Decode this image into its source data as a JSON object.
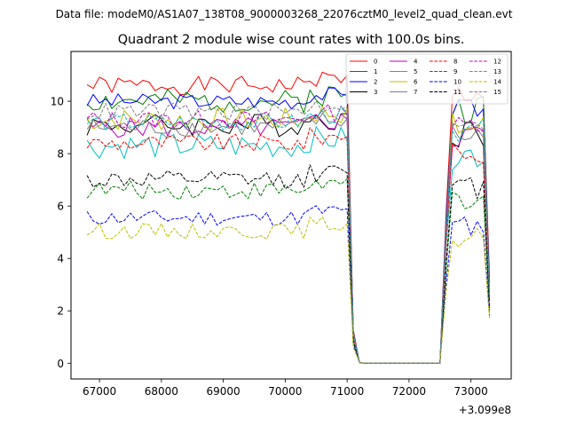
{
  "chart_data": {
    "type": "line",
    "suptitle": "Data file: modeM0/AS1A07_138T08_9000003268_22076cztM0_level2_quad_clean.evt",
    "title": "Quadrant 2 module wise count rates with 100.0s bins.",
    "xlabel": "",
    "ylabel": "",
    "x_offset_label": "+3.099e8",
    "xlim": [
      66540,
      73650
    ],
    "ylim": [
      -0.6,
      11.9
    ],
    "x_ticks": [
      67000,
      68000,
      69000,
      70000,
      71000,
      72000,
      73000
    ],
    "x_tick_labels": [
      "67000",
      "68000",
      "69000",
      "70000",
      "71000",
      "72000",
      "73000"
    ],
    "y_ticks": [
      0,
      2,
      4,
      6,
      8,
      10
    ],
    "y_tick_labels": [
      "0",
      "2",
      "4",
      "6",
      "8",
      "10"
    ],
    "legend_position": "top-right",
    "legend_columns": 4,
    "x": [
      66800,
      66900,
      67000,
      67100,
      67200,
      67300,
      67400,
      67500,
      67600,
      67700,
      67800,
      67900,
      68000,
      68100,
      68200,
      68300,
      68400,
      68500,
      68600,
      68700,
      68800,
      68900,
      69000,
      69100,
      69200,
      69300,
      69400,
      69500,
      69600,
      69700,
      69800,
      69900,
      70000,
      70100,
      70200,
      70300,
      70400,
      70500,
      70600,
      70700,
      70800,
      70900,
      71000,
      71100,
      71200,
      71300,
      71400,
      71500,
      71600,
      71700,
      71800,
      71900,
      72000,
      72100,
      72200,
      72300,
      72400,
      72500,
      72600,
      72700,
      72800,
      72900,
      73000,
      73100,
      73200,
      73300
    ],
    "series": [
      {
        "name": "0",
        "color": "#ff0000",
        "dash": "solid",
        "base": 10.6,
        "amp": 0.35,
        "seed": 1,
        "final": 3.3
      },
      {
        "name": "1",
        "color": "#008000",
        "dash": "solid",
        "base": 10.0,
        "amp": 0.45,
        "seed": 2,
        "final": 2.8
      },
      {
        "name": "2",
        "color": "#0000ff",
        "dash": "solid",
        "base": 10.0,
        "amp": 0.3,
        "seed": 3,
        "final": 3.0
      },
      {
        "name": "3",
        "color": "#000000",
        "dash": "solid",
        "base": 9.1,
        "amp": 0.45,
        "seed": 4,
        "final": 2.6
      },
      {
        "name": "4",
        "color": "#bf00bf",
        "dash": "solid",
        "base": 9.0,
        "amp": 0.4,
        "seed": 5,
        "final": 2.5
      },
      {
        "name": "5",
        "color": "#00bfbf",
        "dash": "solid",
        "base": 8.3,
        "amp": 0.5,
        "seed": 6,
        "final": 2.4
      },
      {
        "name": "6",
        "color": "#bfbf00",
        "dash": "solid",
        "base": 9.3,
        "amp": 0.45,
        "seed": 7,
        "final": 2.7
      },
      {
        "name": "7",
        "color": "#808080",
        "dash": "solid",
        "base": 9.0,
        "amp": 0.35,
        "seed": 8,
        "final": 2.6
      },
      {
        "name": "8",
        "color": "#ff0000",
        "dash": "dashed",
        "base": 8.4,
        "amp": 0.35,
        "seed": 9,
        "final": 2.4
      },
      {
        "name": "9",
        "color": "#008000",
        "dash": "dashed",
        "base": 6.6,
        "amp": 0.35,
        "seed": 10,
        "final": 2.0
      },
      {
        "name": "10",
        "color": "#0000ff",
        "dash": "dashed",
        "base": 5.55,
        "amp": 0.3,
        "seed": 11,
        "final": 1.8
      },
      {
        "name": "11",
        "color": "#000000",
        "dash": "dashed",
        "base": 7.0,
        "amp": 0.35,
        "seed": 12,
        "final": 2.1
      },
      {
        "name": "12",
        "color": "#bf00bf",
        "dash": "dashed",
        "base": 9.3,
        "amp": 0.35,
        "seed": 13,
        "final": 2.7
      },
      {
        "name": "13",
        "color": "#00bfbf",
        "dash": "dashed",
        "base": 9.2,
        "amp": 0.35,
        "seed": 14,
        "final": 2.6
      },
      {
        "name": "14",
        "color": "#bfbf00",
        "dash": "dashed",
        "base": 5.05,
        "amp": 0.3,
        "seed": 15,
        "final": 1.7
      },
      {
        "name": "15",
        "color": "#808080",
        "dash": "dashed",
        "base": 9.6,
        "amp": 0.35,
        "seed": 16,
        "final": 2.8
      }
    ]
  }
}
